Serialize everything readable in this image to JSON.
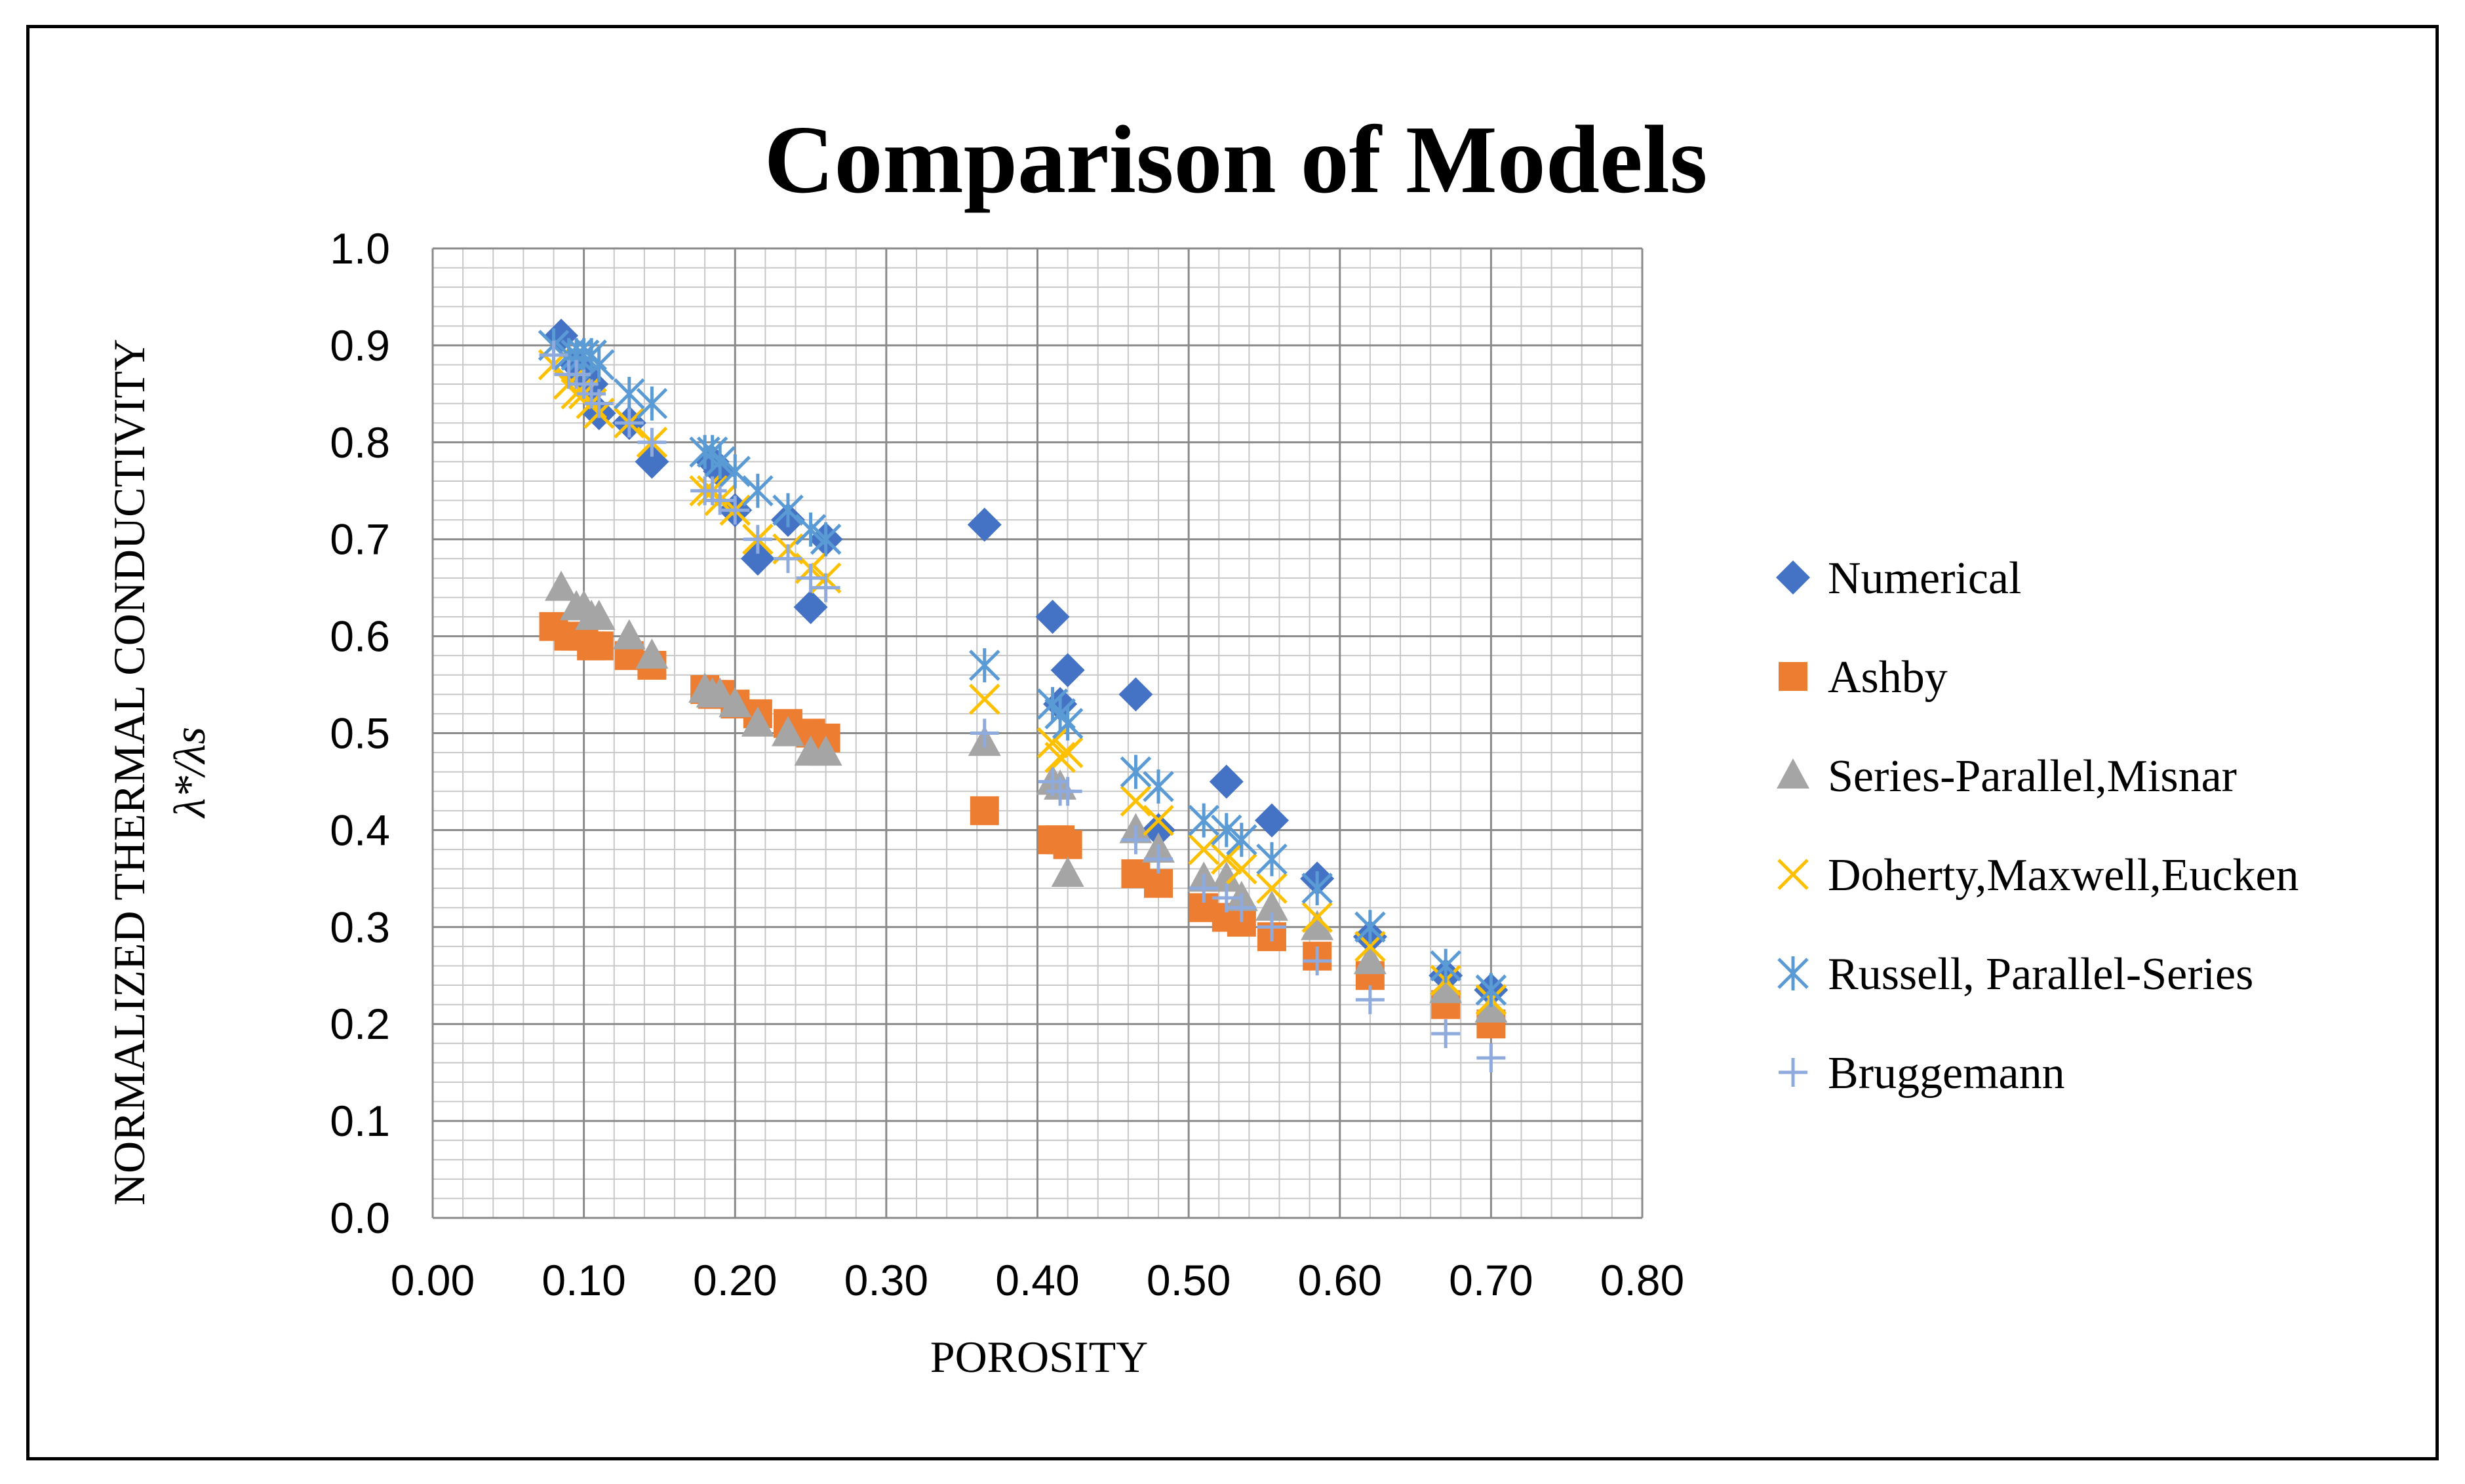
{
  "chart_data": {
    "type": "scatter",
    "title": "Comparison of Models",
    "xlabel": "POROSITY",
    "ylabel": "NORMALIZED THERMAL CONDUCTIVITY",
    "ylabel_sub": "λ*/λs",
    "xlim": [
      0,
      0.8
    ],
    "ylim": [
      0,
      1.0
    ],
    "xticks": [
      "0.00",
      "0.10",
      "0.20",
      "0.30",
      "0.40",
      "0.50",
      "0.60",
      "0.70",
      "0.80"
    ],
    "yticks": [
      "0.0",
      "0.1",
      "0.2",
      "0.3",
      "0.4",
      "0.5",
      "0.6",
      "0.7",
      "0.8",
      "0.9",
      "1.0"
    ],
    "grid": true,
    "legend_position": "right",
    "series": [
      {
        "name": "Numerical",
        "marker": "diamond",
        "color": "#4472c4",
        "x": [
          0.085,
          0.095,
          0.1,
          0.105,
          0.11,
          0.13,
          0.145,
          0.185,
          0.19,
          0.2,
          0.215,
          0.235,
          0.25,
          0.26,
          0.365,
          0.41,
          0.415,
          0.42,
          0.465,
          0.48,
          0.525,
          0.555,
          0.585,
          0.62,
          0.67,
          0.7
        ],
        "y": [
          0.91,
          0.88,
          0.87,
          0.86,
          0.83,
          0.82,
          0.78,
          0.78,
          0.77,
          0.73,
          0.68,
          0.72,
          0.63,
          0.7,
          0.715,
          0.62,
          0.53,
          0.565,
          0.54,
          0.4,
          0.45,
          0.41,
          0.35,
          0.29,
          0.25,
          0.235
        ]
      },
      {
        "name": "Ashby",
        "marker": "square",
        "color": "#ed7d31",
        "x": [
          0.08,
          0.09,
          0.095,
          0.1,
          0.105,
          0.11,
          0.13,
          0.145,
          0.18,
          0.185,
          0.19,
          0.2,
          0.215,
          0.235,
          0.25,
          0.26,
          0.365,
          0.41,
          0.415,
          0.42,
          0.465,
          0.48,
          0.51,
          0.525,
          0.535,
          0.555,
          0.585,
          0.62,
          0.67,
          0.7
        ],
        "y": [
          0.61,
          0.6,
          0.6,
          0.6,
          0.59,
          0.59,
          0.58,
          0.57,
          0.545,
          0.54,
          0.54,
          0.53,
          0.52,
          0.51,
          0.5,
          0.495,
          0.42,
          0.39,
          0.39,
          0.385,
          0.355,
          0.345,
          0.32,
          0.31,
          0.305,
          0.29,
          0.27,
          0.25,
          0.22,
          0.2
        ]
      },
      {
        "name": "Series-Parallel,Misnar",
        "marker": "triangle",
        "color": "#a5a5a5",
        "x": [
          0.085,
          0.095,
          0.1,
          0.105,
          0.11,
          0.13,
          0.145,
          0.18,
          0.185,
          0.19,
          0.2,
          0.215,
          0.235,
          0.25,
          0.26,
          0.365,
          0.41,
          0.415,
          0.42,
          0.465,
          0.48,
          0.51,
          0.525,
          0.535,
          0.555,
          0.585,
          0.62,
          0.67,
          0.7
        ],
        "y": [
          0.65,
          0.63,
          0.63,
          0.62,
          0.62,
          0.6,
          0.58,
          0.545,
          0.54,
          0.54,
          0.53,
          0.51,
          0.5,
          0.48,
          0.48,
          0.49,
          0.45,
          0.445,
          0.355,
          0.4,
          0.38,
          0.35,
          0.35,
          0.33,
          0.32,
          0.3,
          0.265,
          0.235,
          0.215
        ]
      },
      {
        "name": "Doherty,Maxwell,Eucken",
        "marker": "x",
        "color": "#ffc000",
        "x": [
          0.08,
          0.09,
          0.095,
          0.1,
          0.105,
          0.11,
          0.13,
          0.145,
          0.18,
          0.185,
          0.19,
          0.2,
          0.215,
          0.235,
          0.25,
          0.26,
          0.365,
          0.41,
          0.415,
          0.42,
          0.465,
          0.48,
          0.51,
          0.525,
          0.535,
          0.555,
          0.585,
          0.62,
          0.67,
          0.7
        ],
        "y": [
          0.88,
          0.86,
          0.85,
          0.85,
          0.84,
          0.83,
          0.82,
          0.8,
          0.75,
          0.75,
          0.74,
          0.73,
          0.7,
          0.69,
          0.67,
          0.66,
          0.535,
          0.49,
          0.475,
          0.48,
          0.43,
          0.41,
          0.38,
          0.37,
          0.36,
          0.34,
          0.31,
          0.28,
          0.245,
          0.225
        ]
      },
      {
        "name": "Russell, Parallel-Series",
        "marker": "asterisk",
        "color": "#5b9bd5",
        "x": [
          0.08,
          0.09,
          0.095,
          0.1,
          0.105,
          0.11,
          0.13,
          0.145,
          0.18,
          0.185,
          0.19,
          0.2,
          0.215,
          0.235,
          0.25,
          0.26,
          0.365,
          0.41,
          0.415,
          0.42,
          0.465,
          0.48,
          0.51,
          0.525,
          0.535,
          0.555,
          0.585,
          0.62,
          0.67,
          0.7
        ],
        "y": [
          0.9,
          0.89,
          0.89,
          0.89,
          0.89,
          0.88,
          0.85,
          0.84,
          0.79,
          0.79,
          0.78,
          0.77,
          0.75,
          0.73,
          0.71,
          0.7,
          0.57,
          0.53,
          0.52,
          0.51,
          0.46,
          0.445,
          0.41,
          0.4,
          0.39,
          0.37,
          0.34,
          0.3,
          0.26,
          0.235
        ]
      },
      {
        "name": "Bruggemann",
        "marker": "plus",
        "color": "#8faadc",
        "x": [
          0.08,
          0.09,
          0.095,
          0.1,
          0.105,
          0.11,
          0.13,
          0.145,
          0.18,
          0.185,
          0.19,
          0.2,
          0.215,
          0.235,
          0.25,
          0.26,
          0.365,
          0.41,
          0.415,
          0.42,
          0.465,
          0.48,
          0.51,
          0.525,
          0.535,
          0.555,
          0.585,
          0.62,
          0.67,
          0.7
        ],
        "y": [
          0.89,
          0.87,
          0.87,
          0.86,
          0.85,
          0.84,
          0.82,
          0.8,
          0.75,
          0.75,
          0.74,
          0.73,
          0.7,
          0.68,
          0.66,
          0.65,
          0.5,
          0.45,
          0.44,
          0.44,
          0.39,
          0.37,
          0.34,
          0.33,
          0.32,
          0.3,
          0.265,
          0.225,
          0.19,
          0.165
        ]
      }
    ]
  }
}
